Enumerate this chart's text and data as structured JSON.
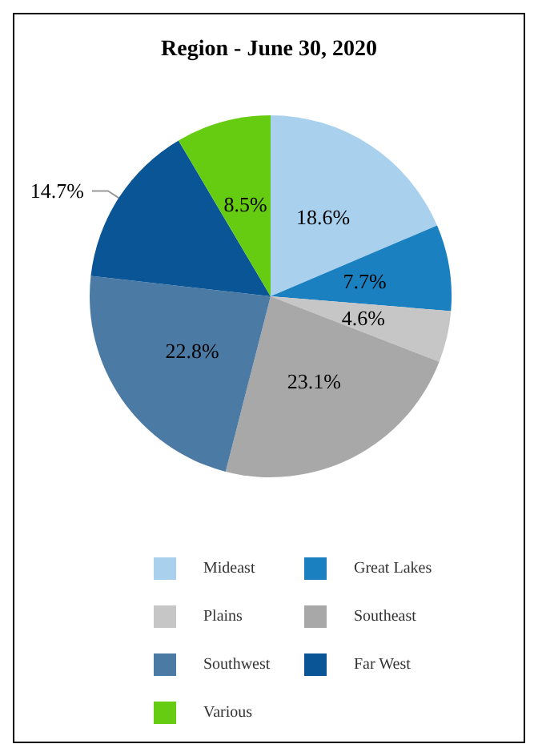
{
  "chart_data": {
    "type": "pie",
    "title": "Region - June 30, 2020",
    "categories": [
      "Mideast",
      "Great Lakes",
      "Plains",
      "Southeast",
      "Southwest",
      "Far West",
      "Various"
    ],
    "values": [
      18.6,
      7.7,
      4.6,
      23.1,
      22.8,
      14.7,
      8.5
    ],
    "value_labels": [
      "18.6%",
      "7.7%",
      "4.6%",
      "23.1%",
      "22.8%",
      "14.7%",
      "8.5%"
    ],
    "colors": [
      "#a9d1ee",
      "#1b80c0",
      "#c6c6c6",
      "#a8a8a8",
      "#4b7aa5",
      "#0a5596",
      "#66cc11"
    ],
    "legend": "bottom"
  }
}
